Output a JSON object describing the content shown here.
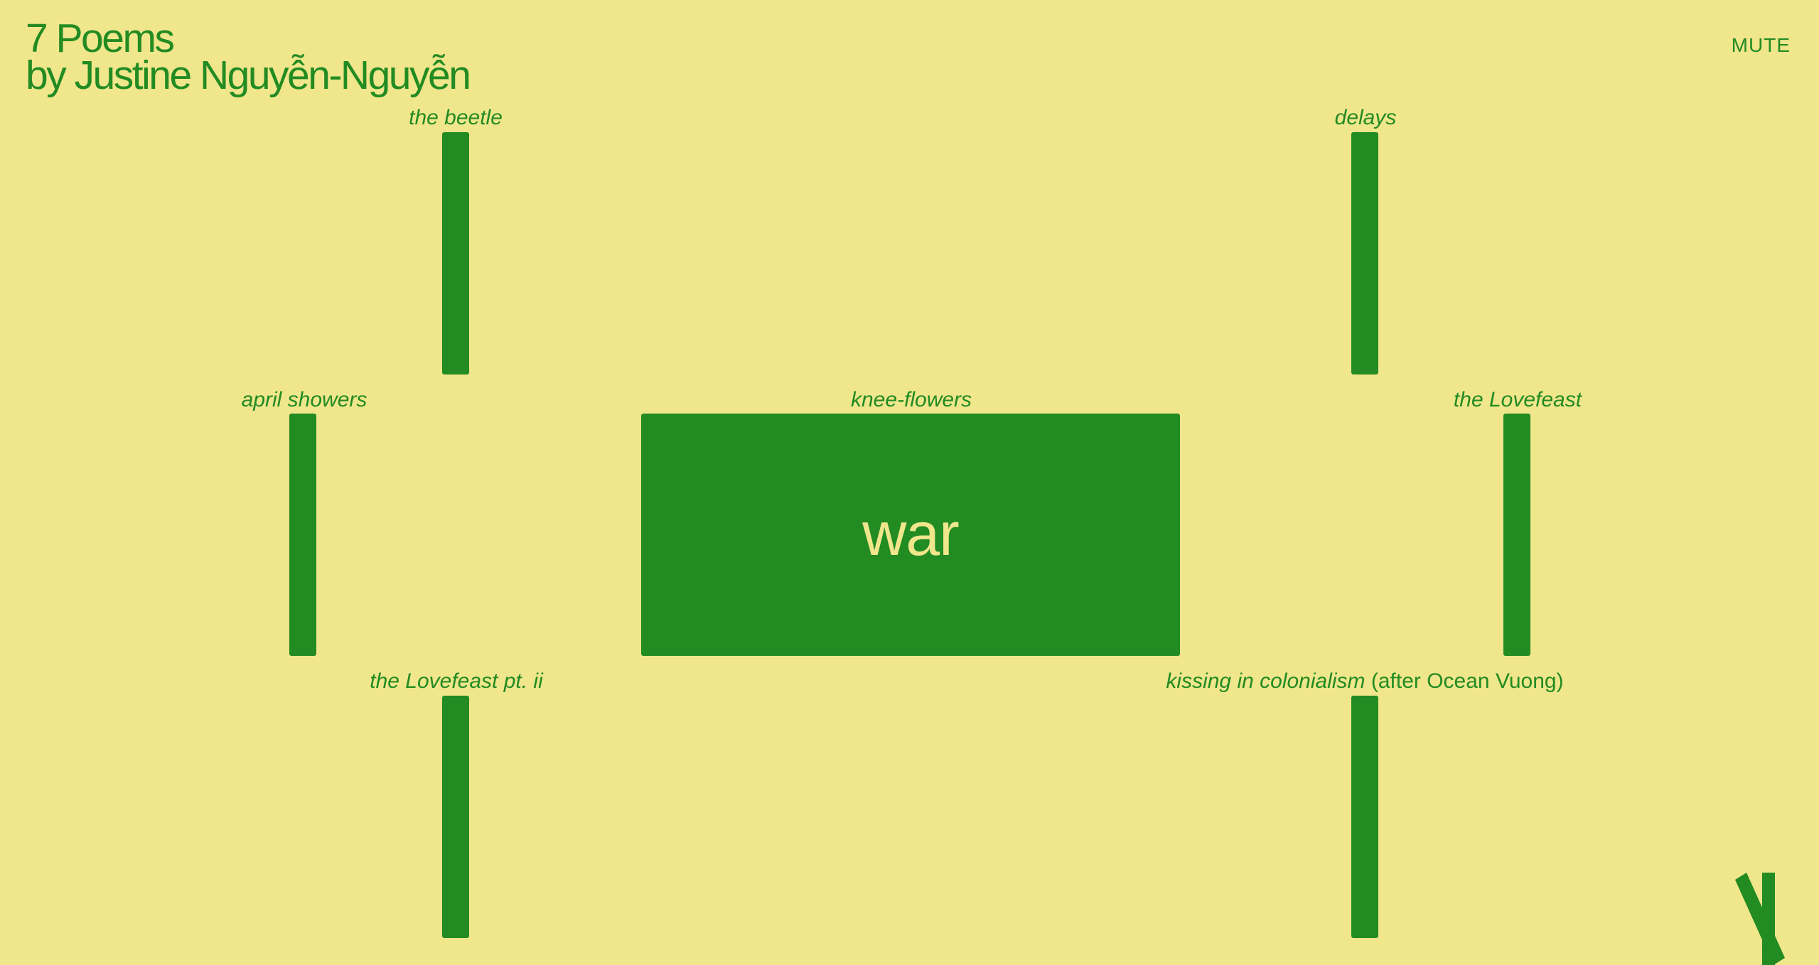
{
  "header": {
    "title_line1": "7 Poems",
    "title_line2": "by Justine Nguyễn-Nguyễn",
    "mute_label": "MUTE"
  },
  "poems": [
    {
      "id": "the-beetle",
      "title": "the beetle",
      "note": ""
    },
    {
      "id": "delays",
      "title": "delays",
      "note": ""
    },
    {
      "id": "april-showers",
      "title": "april showers",
      "note": ""
    },
    {
      "id": "knee-flowers",
      "title": "knee-flowers",
      "note": ""
    },
    {
      "id": "the-lovefeast",
      "title": "the Lovefeast",
      "note": ""
    },
    {
      "id": "the-lovefeast-pt-ii",
      "title": "the Lovefeast pt. ii",
      "note": ""
    },
    {
      "id": "kissing-in-colonialism",
      "title": "kissing in colonialism",
      "note": " (after Ocean Vuong)"
    }
  ],
  "active_poem": {
    "word": "war"
  },
  "logo": {
    "icon": "crossed-bars-logo-icon"
  },
  "colors": {
    "background": "#f0e68c",
    "accent": "#228b22"
  }
}
